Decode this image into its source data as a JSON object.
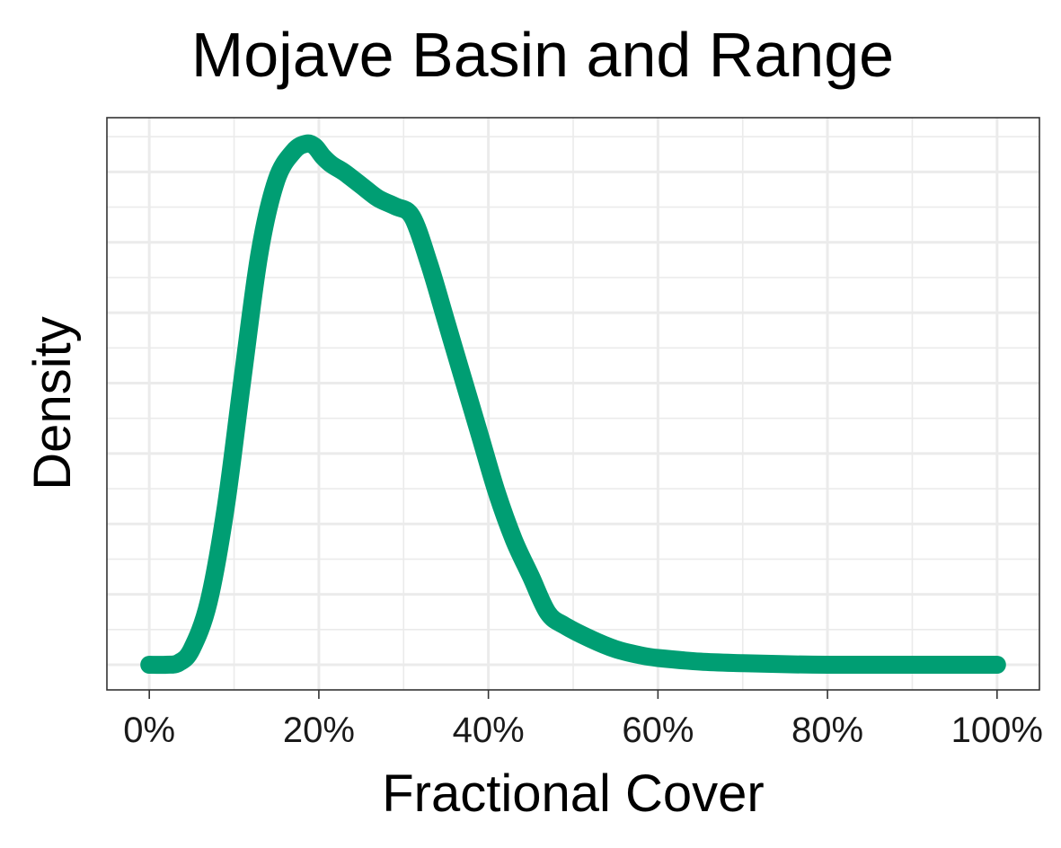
{
  "chart_data": {
    "type": "line",
    "title": "Mojave Basin and Range",
    "xlabel": "Fractional Cover",
    "ylabel": "Density",
    "xlim": [
      -0.05,
      1.05
    ],
    "ylim": [
      0,
      1.0
    ],
    "x_ticks": [
      0,
      0.2,
      0.4,
      0.6,
      0.8,
      1.0
    ],
    "x_tick_labels": [
      "0%",
      "20%",
      "40%",
      "60%",
      "80%",
      "100%"
    ],
    "y_tick_labels": [],
    "grid": true,
    "series": [
      {
        "color": "#009E73",
        "x": [
          0.0,
          0.02,
          0.035,
          0.05,
          0.07,
          0.09,
          0.11,
          0.13,
          0.15,
          0.17,
          0.185,
          0.195,
          0.205,
          0.215,
          0.23,
          0.25,
          0.27,
          0.29,
          0.31,
          0.33,
          0.35,
          0.37,
          0.39,
          0.41,
          0.43,
          0.45,
          0.47,
          0.49,
          0.52,
          0.55,
          0.58,
          0.6,
          0.65,
          0.7,
          0.75,
          0.8,
          0.9,
          1.0
        ],
        "y": [
          0.0,
          0.0,
          0.004,
          0.03,
          0.12,
          0.3,
          0.55,
          0.79,
          0.93,
          0.985,
          1.0,
          0.995,
          0.975,
          0.96,
          0.945,
          0.92,
          0.895,
          0.88,
          0.86,
          0.77,
          0.66,
          0.55,
          0.44,
          0.33,
          0.24,
          0.17,
          0.1,
          0.075,
          0.05,
          0.03,
          0.018,
          0.013,
          0.006,
          0.003,
          0.001,
          0.0,
          0.0,
          0.0
        ]
      }
    ]
  }
}
